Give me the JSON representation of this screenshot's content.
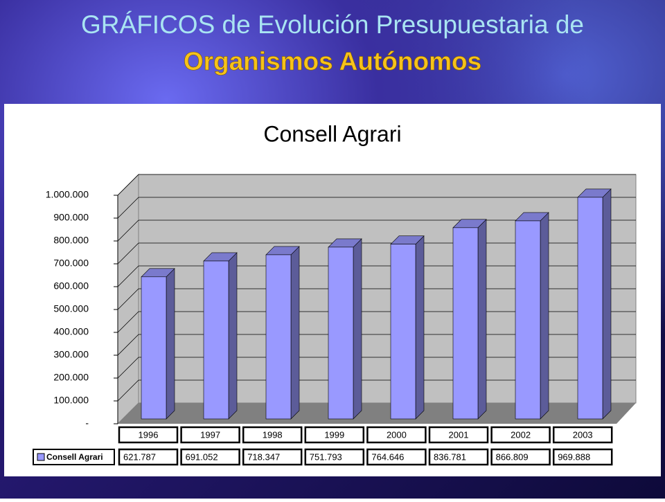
{
  "header": {
    "line1": "GRÁFICOS de Evolución Presupuestaria de",
    "line2": "Organismos Autónomos"
  },
  "chart_data": {
    "type": "bar",
    "title": "Consell Agrari",
    "categories": [
      "1996",
      "1997",
      "1998",
      "1999",
      "2000",
      "2001",
      "2002",
      "2003"
    ],
    "series": [
      {
        "name": "Consell Agrari",
        "color": "#9999ff",
        "values": [
          621787,
          691052,
          718347,
          751793,
          764646,
          836781,
          866809,
          969888
        ],
        "value_labels": [
          "621.787",
          "691.052",
          "718.347",
          "751.793",
          "764.646",
          "836.781",
          "866.809",
          "969.888"
        ]
      }
    ],
    "ylim": [
      0,
      1000000
    ],
    "yticks": [
      {
        "value": 0,
        "label": "-"
      },
      {
        "value": 100000,
        "label": "100.000"
      },
      {
        "value": 200000,
        "label": "200.000"
      },
      {
        "value": 300000,
        "label": "300.000"
      },
      {
        "value": 400000,
        "label": "400.000"
      },
      {
        "value": 500000,
        "label": "500.000"
      },
      {
        "value": 600000,
        "label": "600.000"
      },
      {
        "value": 700000,
        "label": "700.000"
      },
      {
        "value": 800000,
        "label": "800.000"
      },
      {
        "value": 900000,
        "label": "900.000"
      },
      {
        "value": 1000000,
        "label": "1.000.000"
      }
    ],
    "grid": true
  }
}
